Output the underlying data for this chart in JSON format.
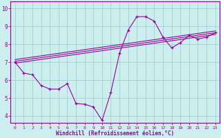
{
  "xlabel": "Windchill (Refroidissement éolien,°C)",
  "background_color": "#cceeee",
  "line_color": "#990099",
  "grid_color": "#99cccc",
  "xlim": [
    -0.5,
    23.5
  ],
  "ylim": [
    3.6,
    10.4
  ],
  "yticks": [
    4,
    5,
    6,
    7,
    8,
    9,
    10
  ],
  "xticks": [
    0,
    1,
    2,
    3,
    4,
    5,
    6,
    7,
    8,
    9,
    10,
    11,
    12,
    13,
    14,
    15,
    16,
    17,
    18,
    19,
    20,
    21,
    22,
    23
  ],
  "main_x": [
    0,
    1,
    2,
    3,
    4,
    5,
    6,
    7,
    8,
    9,
    10,
    11,
    12,
    13,
    14,
    15,
    16,
    17,
    18,
    19,
    20,
    21,
    22,
    23
  ],
  "main_y": [
    7.0,
    6.4,
    6.3,
    5.7,
    5.5,
    5.5,
    5.8,
    4.7,
    4.65,
    4.5,
    3.75,
    5.3,
    7.5,
    8.8,
    9.55,
    9.55,
    9.3,
    8.4,
    7.8,
    8.1,
    8.5,
    8.3,
    8.4,
    8.65
  ],
  "reg_lines": [
    {
      "x": [
        0,
        23
      ],
      "y": [
        7.15,
        8.75
      ]
    },
    {
      "x": [
        0,
        23
      ],
      "y": [
        6.95,
        8.55
      ]
    },
    {
      "x": [
        0,
        23
      ],
      "y": [
        7.05,
        8.65
      ]
    }
  ]
}
